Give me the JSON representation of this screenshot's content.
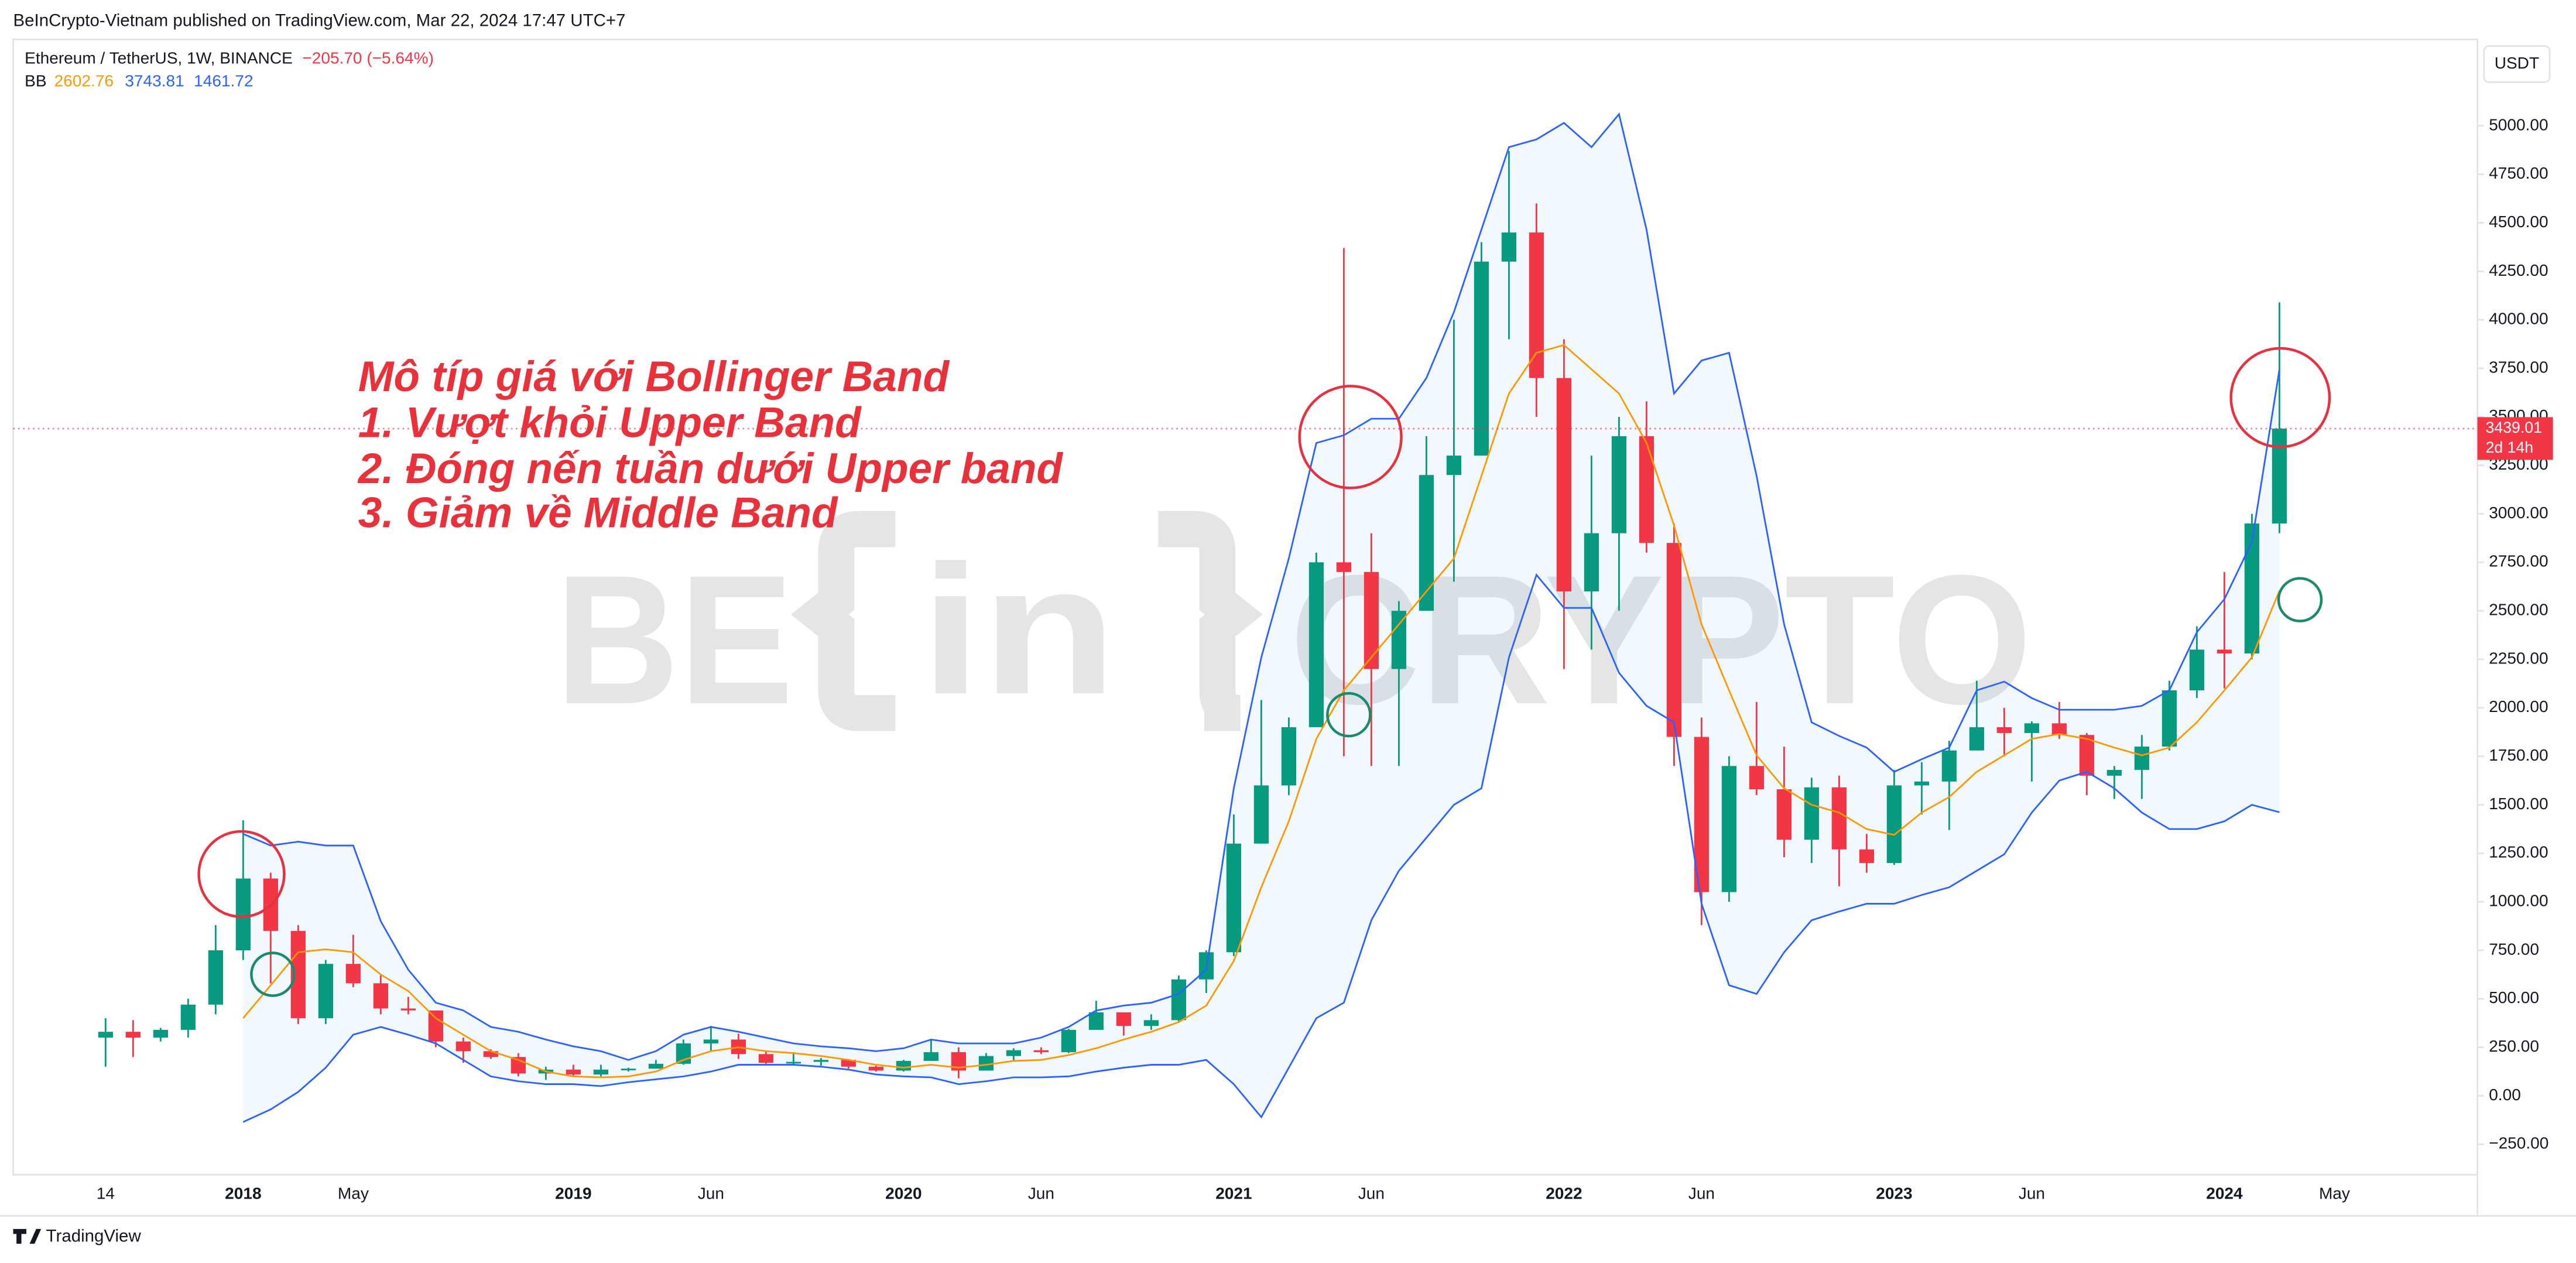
{
  "header": {
    "published": "BeInCrypto-Vietnam published on TradingView.com, Mar 22, 2024 17:47 UTC+7",
    "symbol": "Ethereum / TetherUS, 1W, BINANCE",
    "change": "−205.70 (−5.64%)",
    "currency": "USDT"
  },
  "annotation": [
    "Mô típ giá với Bollinger Band",
    "1. Vượt khỏi Upper Band",
    "2. Đóng nến tuần dưới Upper band",
    "3. Giảm về Middle Band"
  ],
  "watermark": [
    "BE",
    "in",
    "CRYPTO"
  ],
  "footer": {
    "brand": "TradingView"
  },
  "chart_data": {
    "type": "candlestick",
    "categories": [
      "14",
      null,
      null,
      null,
      null,
      "2018",
      null,
      null,
      null,
      "May",
      null,
      null,
      null,
      null,
      null,
      null,
      null,
      "2019",
      null,
      null,
      null,
      null,
      "Jun",
      null,
      null,
      null,
      null,
      null,
      null,
      "2020",
      null,
      null,
      null,
      null,
      "Jun",
      null,
      null,
      null,
      null,
      null,
      null,
      "2021",
      null,
      null,
      null,
      null,
      "Jun",
      null,
      null,
      null,
      null,
      null,
      null,
      "2022",
      null,
      null,
      null,
      null,
      "Jun",
      null,
      null,
      null,
      null,
      null,
      null,
      "2023",
      null,
      null,
      null,
      null,
      "Jun",
      null,
      null,
      null,
      null,
      null,
      null,
      "2024",
      null,
      null,
      null,
      "May"
    ],
    "open": [
      300,
      330,
      300,
      340,
      470,
      750,
      1120,
      850,
      400,
      680,
      580,
      450,
      440,
      280,
      230,
      200,
      115,
      135,
      110,
      135,
      140,
      165,
      270,
      290,
      215,
      170,
      175,
      185,
      150,
      130,
      180,
      225,
      130,
      205,
      235,
      225,
      340,
      430,
      360,
      390,
      600,
      740,
      1300,
      1600,
      1900,
      2750,
      2700,
      2200,
      2500,
      3200,
      3300,
      4300,
      4450,
      3700,
      2600,
      2900,
      3400,
      2850,
      1850,
      1050,
      1700,
      1580,
      1320,
      1590,
      1270,
      1200,
      1600,
      1620,
      1780,
      1900,
      1870,
      1920,
      1860,
      1650,
      1680,
      1800,
      2090,
      2300,
      2280,
      2950,
      null,
      null
    ],
    "high": [
      400,
      390,
      350,
      500,
      880,
      1420,
      1150,
      880,
      700,
      830,
      620,
      510,
      440,
      300,
      240,
      220,
      150,
      160,
      160,
      145,
      185,
      290,
      360,
      320,
      230,
      225,
      195,
      190,
      155,
      185,
      290,
      250,
      220,
      245,
      250,
      345,
      490,
      430,
      420,
      620,
      750,
      1450,
      2040,
      1950,
      2800,
      4370,
      2900,
      2550,
      3400,
      4000,
      4400,
      4870,
      4600,
      3900,
      3300,
      3500,
      3580,
      2950,
      1950,
      1750,
      2030,
      1800,
      1640,
      1650,
      1350,
      1680,
      1720,
      1830,
      2140,
      2000,
      1930,
      2030,
      1870,
      1700,
      1860,
      2140,
      2420,
      2700,
      3000,
      4090,
      null,
      null
    ],
    "low": [
      150,
      200,
      280,
      300,
      420,
      700,
      580,
      370,
      370,
      560,
      420,
      420,
      250,
      170,
      190,
      100,
      82,
      100,
      100,
      125,
      140,
      160,
      230,
      190,
      165,
      155,
      155,
      140,
      125,
      125,
      180,
      90,
      130,
      180,
      215,
      220,
      340,
      310,
      340,
      380,
      530,
      720,
      1300,
      1550,
      1900,
      1750,
      1700,
      1700,
      2500,
      2650,
      3300,
      3900,
      3500,
      2200,
      2300,
      2500,
      2800,
      1700,
      880,
      1000,
      1550,
      1230,
      1200,
      1080,
      1150,
      1190,
      1450,
      1370,
      1780,
      1750,
      1620,
      1840,
      1550,
      1530,
      1530,
      1780,
      2050,
      2100,
      2250,
      2900,
      null,
      null
    ],
    "close": [
      330,
      300,
      340,
      470,
      750,
      1120,
      850,
      400,
      680,
      580,
      450,
      440,
      280,
      230,
      200,
      115,
      135,
      110,
      135,
      140,
      165,
      270,
      290,
      215,
      170,
      175,
      185,
      150,
      130,
      180,
      225,
      130,
      205,
      235,
      225,
      340,
      430,
      360,
      390,
      600,
      740,
      1300,
      1600,
      1900,
      2750,
      2700,
      2200,
      2500,
      3200,
      3300,
      4300,
      4450,
      3700,
      2600,
      2900,
      3400,
      2850,
      1850,
      1050,
      1700,
      1580,
      1320,
      1590,
      1270,
      1200,
      1600,
      1620,
      1780,
      1900,
      1870,
      1920,
      1860,
      1650,
      1680,
      1800,
      2090,
      2300,
      2280,
      2950,
      3439.01,
      null,
      null
    ],
    "up_color": "#089981",
    "down_color": "#f23645",
    "bb": {
      "label": "BB",
      "fill": "#2196f3",
      "middle": {
        "color": "#ff9800",
        "values": [
          null,
          null,
          null,
          null,
          null,
          400,
          570,
          740,
          755,
          740,
          625,
          540,
          400,
          315,
          230,
          185,
          125,
          100,
          95,
          100,
          125,
          185,
          230,
          250,
          230,
          220,
          205,
          185,
          160,
          145,
          160,
          145,
          160,
          180,
          185,
          210,
          245,
          290,
          330,
          380,
          465,
          695,
          1075,
          1415,
          1840,
          2090,
          2260,
          2430,
          2600,
          2770,
          3195,
          3620,
          3830,
          3870,
          3745,
          3620,
          3365,
          2940,
          2430,
          2090,
          1755,
          1585,
          1500,
          1460,
          1375,
          1345,
          1460,
          1540,
          1670,
          1755,
          1840,
          1865,
          1840,
          1795,
          1755,
          1795,
          1925,
          2090,
          2260,
          2602.76,
          null,
          null
        ]
      },
      "upper": {
        "color": "#2962ff",
        "values": [
          null,
          null,
          null,
          null,
          null,
          1350,
          1290,
          1310,
          1290,
          1290,
          900,
          650,
          480,
          440,
          355,
          330,
          290,
          255,
          230,
          185,
          230,
          315,
          355,
          330,
          300,
          270,
          255,
          245,
          230,
          245,
          290,
          270,
          270,
          270,
          300,
          355,
          440,
          465,
          480,
          525,
          650,
          1585,
          2260,
          2770,
          3365,
          3405,
          3490,
          3490,
          3700,
          4040,
          4465,
          4890,
          4930,
          5015,
          4890,
          5060,
          4465,
          3620,
          3790,
          3830,
          3195,
          2430,
          1925,
          1855,
          1795,
          1670,
          1735,
          1795,
          2090,
          2135,
          2050,
          1990,
          1990,
          1990,
          2010,
          2090,
          2390,
          2560,
          2855,
          3743.81,
          null,
          null
        ]
      },
      "lower": {
        "color": "#2962ff",
        "values": [
          null,
          null,
          null,
          null,
          null,
          -135,
          -70,
          20,
          145,
          315,
          355,
          315,
          270,
          185,
          100,
          75,
          60,
          60,
          50,
          70,
          85,
          100,
          125,
          160,
          160,
          160,
          150,
          135,
          110,
          100,
          95,
          60,
          75,
          95,
          95,
          100,
          125,
          145,
          160,
          160,
          185,
          60,
          -110,
          145,
          400,
          480,
          905,
          1160,
          1330,
          1500,
          1585,
          2260,
          2685,
          2515,
          2515,
          2180,
          2010,
          1925,
          990,
          570,
          525,
          740,
          905,
          950,
          990,
          990,
          1035,
          1075,
          1160,
          1245,
          1460,
          1625,
          1670,
          1585,
          1460,
          1375,
          1375,
          1415,
          1500,
          1461.72,
          null,
          null
        ]
      }
    },
    "price_tag": {
      "time_left": "2d 14h",
      "color": "#f23645"
    },
    "ylim": [
      -407,
      5441
    ],
    "yticks": [
      {
        "value": -250,
        "label": "−250.00"
      },
      {
        "value": 0,
        "label": "0.00"
      },
      {
        "value": 250,
        "label": "250.00"
      },
      {
        "value": 500,
        "label": "500.00"
      },
      {
        "value": 750,
        "label": "750.00"
      },
      {
        "value": 1000,
        "label": "1000.00"
      },
      {
        "value": 1250,
        "label": "1250.00"
      },
      {
        "value": 1500,
        "label": "1500.00"
      },
      {
        "value": 1750,
        "label": "1750.00"
      },
      {
        "value": 2000,
        "label": "2000.00"
      },
      {
        "value": 2250,
        "label": "2250.00"
      },
      {
        "value": 2500,
        "label": "2500.00"
      },
      {
        "value": 2750,
        "label": "2750.00"
      },
      {
        "value": 3000,
        "label": "3000.00"
      },
      {
        "value": 3250,
        "label": "3250.00"
      },
      {
        "value": 3500,
        "label": "3500.00"
      },
      {
        "value": 3750,
        "label": "3750.00"
      },
      {
        "value": 4000,
        "label": "4000.00"
      },
      {
        "value": 4250,
        "label": "4250.00"
      },
      {
        "value": 4500,
        "label": "4500.00"
      },
      {
        "value": 4750,
        "label": "4750.00"
      },
      {
        "value": 5000,
        "label": "5000.00"
      }
    ],
    "grid": false
  }
}
